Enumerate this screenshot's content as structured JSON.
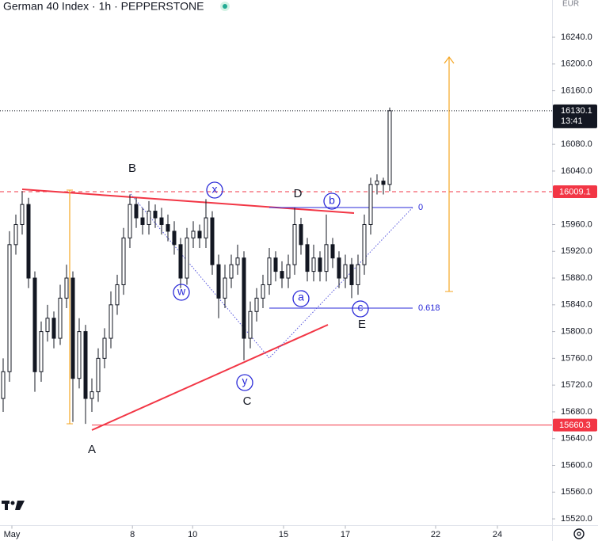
{
  "chart_data": {
    "type": "candlestick",
    "title": "German 40 Index · 1h · PEPPERSTONE",
    "currency": "EUR",
    "candle_color": "#131722",
    "opens": [
      15700,
      15740,
      15930,
      15960,
      15990,
      15880,
      15740,
      15800,
      15820,
      15790,
      15850,
      15880,
      15730,
      15800,
      15700,
      15710,
      15760,
      15790,
      15840,
      15870,
      15940,
      15990,
      15970,
      15960,
      15980,
      15970,
      15960,
      15950,
      15930,
      15880,
      15940,
      15950,
      15940,
      15970,
      15900,
      15850,
      15880,
      15900,
      15910,
      15790,
      15830,
      15850,
      15870,
      15910,
      15890,
      15880,
      15900,
      15960,
      15930,
      15890,
      15910,
      15890,
      15930,
      15910,
      15880,
      15900,
      15870,
      15900,
      15960,
      16020,
      16025,
      16020
    ],
    "highs": [
      15760,
      15950,
      15975,
      16010,
      16000,
      15890,
      15815,
      15840,
      15830,
      15870,
      15900,
      15890,
      15820,
      15810,
      15730,
      15775,
      15805,
      15860,
      15885,
      15955,
      16005,
      16000,
      15985,
      15995,
      15990,
      15985,
      15975,
      15965,
      15940,
      15955,
      15965,
      15960,
      15998,
      15980,
      15915,
      15900,
      15915,
      15930,
      15920,
      15845,
      15865,
      15885,
      15925,
      15920,
      15905,
      15915,
      15985,
      15970,
      15940,
      15930,
      15920,
      15975,
      15940,
      15920,
      15915,
      15910,
      15915,
      15975,
      16030,
      16035,
      16030,
      16135
    ],
    "lows": [
      15680,
      15725,
      15915,
      15945,
      15865,
      15710,
      15725,
      15785,
      15775,
      15780,
      15835,
      15665,
      15715,
      15662,
      15680,
      15695,
      15745,
      15775,
      15825,
      15855,
      15925,
      15955,
      15945,
      15945,
      15955,
      15945,
      15935,
      15915,
      15865,
      15870,
      15925,
      15925,
      15925,
      15885,
      15820,
      15835,
      15865,
      15885,
      15757,
      15775,
      15815,
      15835,
      15855,
      15875,
      15865,
      15865,
      15885,
      15915,
      15875,
      15875,
      15875,
      15875,
      15895,
      15865,
      15865,
      15850,
      15855,
      15885,
      15945,
      16005,
      16005,
      16010
    ],
    "closes": [
      15740,
      15930,
      15960,
      15990,
      15880,
      15740,
      15800,
      15820,
      15790,
      15850,
      15880,
      15730,
      15800,
      15700,
      15710,
      15760,
      15790,
      15840,
      15870,
      15940,
      15990,
      15970,
      15960,
      15980,
      15970,
      15960,
      15950,
      15930,
      15880,
      15940,
      15950,
      15940,
      15970,
      15900,
      15850,
      15880,
      15900,
      15910,
      15790,
      15830,
      15850,
      15870,
      15910,
      15890,
      15880,
      15900,
      15960,
      15930,
      15890,
      15910,
      15890,
      15930,
      15910,
      15880,
      15900,
      15870,
      15900,
      15960,
      16020,
      16025,
      16020,
      16130.1
    ],
    "xlim": [
      -0.5,
      86.625
    ],
    "xticks": [
      {
        "value": 1.375,
        "label": "May"
      },
      {
        "value": 20.4,
        "label": "8"
      },
      {
        "value": 29.9,
        "label": "10"
      },
      {
        "value": 44.25,
        "label": "15"
      },
      {
        "value": 54,
        "label": "17"
      },
      {
        "value": 68.25,
        "label": "22"
      },
      {
        "value": 78,
        "label": "24"
      }
    ],
    "ylim": [
      15510,
      16295.7
    ],
    "yticks": [
      {
        "value": 15520,
        "label": "15520.0"
      },
      {
        "value": 15560,
        "label": "15560.0"
      },
      {
        "value": 15600,
        "label": "15600.0"
      },
      {
        "value": 15640,
        "label": "15640.0"
      },
      {
        "value": 15680,
        "label": "15680.0"
      },
      {
        "value": 15720,
        "label": "15720.0"
      },
      {
        "value": 15760,
        "label": "15760.0"
      },
      {
        "value": 15800,
        "label": "15800.0"
      },
      {
        "value": 15840,
        "label": "15840.0"
      },
      {
        "value": 15880,
        "label": "15880.0"
      },
      {
        "value": 15920,
        "label": "15920.0"
      },
      {
        "value": 15960,
        "label": "15960.0"
      },
      {
        "value": 16040,
        "label": "16040.0"
      },
      {
        "value": 16080,
        "label": "16080.0"
      },
      {
        "value": 16160,
        "label": "16160.0"
      },
      {
        "value": 16200,
        "label": "16200.0"
      },
      {
        "value": 16240,
        "label": "16240.0"
      }
    ],
    "last_price": {
      "value": 16130.1,
      "time": "13:41"
    },
    "price_lines": [
      {
        "value": 16009.1,
        "color": "#f23645",
        "dashed": true
      },
      {
        "value": 15660.3,
        "color": "#f23645",
        "dashed": false
      }
    ],
    "wave_labels": [
      "A",
      "B",
      "C",
      "D",
      "E"
    ],
    "sub_labels": [
      "w",
      "x",
      "y",
      "a",
      "b",
      "c"
    ],
    "fib_levels": [
      0,
      0.618
    ]
  }
}
